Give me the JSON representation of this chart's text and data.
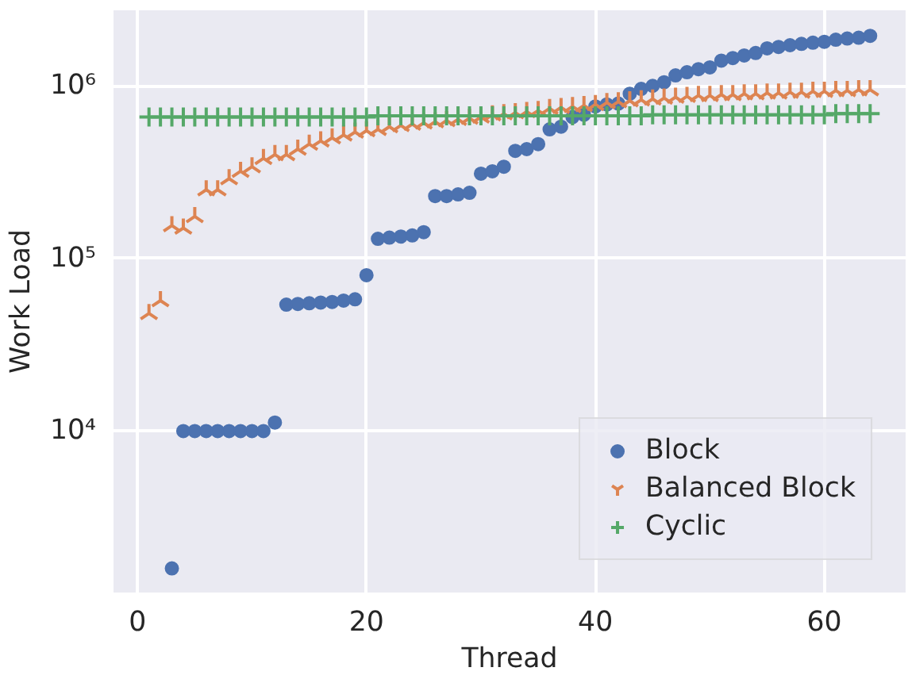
{
  "chart_data": {
    "type": "scatter",
    "xlabel": "Thread",
    "ylabel": "Work Load",
    "log": "y",
    "grid": true,
    "legend": "bottom right",
    "xlim": [
      -2.1,
      67.1
    ],
    "xticks": [
      0,
      20,
      40,
      60
    ],
    "ylim": [
      1160,
      2740000
    ],
    "yticks": [
      {
        "value": 10000,
        "label": "10⁴"
      },
      {
        "value": 100000,
        "label": "10⁵"
      },
      {
        "value": 1000000,
        "label": "10⁶"
      }
    ],
    "series": [
      {
        "name": "Block",
        "color": "#4c72b0",
        "marker": "circle",
        "x": [
          3,
          4,
          5,
          6,
          7,
          8,
          9,
          10,
          11,
          12,
          13,
          14,
          15,
          16,
          17,
          18,
          19,
          20,
          21,
          22,
          23,
          24,
          25,
          26,
          27,
          28,
          29,
          30,
          31,
          32,
          33,
          34,
          35,
          36,
          37,
          38,
          39,
          40,
          41,
          42,
          43,
          44,
          45,
          46,
          47,
          48,
          49,
          50,
          51,
          52,
          53,
          54,
          55,
          56,
          57,
          58,
          59,
          60,
          61,
          62,
          63,
          64
        ],
        "values": [
          1600,
          10000,
          10000,
          10000,
          10000,
          10000,
          10000,
          10000,
          10000,
          11200,
          54000,
          54500,
          55000,
          55500,
          56000,
          57000,
          58000,
          80000,
          130000,
          132000,
          134000,
          136000,
          142000,
          230000,
          230000,
          235000,
          240000,
          310000,
          320000,
          340000,
          420000,
          430000,
          460000,
          560000,
          580000,
          660000,
          680000,
          760000,
          780000,
          790000,
          900000,
          960000,
          1000000,
          1050000,
          1150000,
          1200000,
          1250000,
          1280000,
          1400000,
          1450000,
          1500000,
          1550000,
          1650000,
          1680000,
          1720000,
          1750000,
          1780000,
          1800000,
          1850000,
          1880000,
          1900000,
          1950000
        ]
      },
      {
        "name": "Balanced Block",
        "color": "#dd8452",
        "x": [
          1,
          2,
          3,
          4,
          5,
          6,
          7,
          8,
          9,
          10,
          11,
          12,
          13,
          14,
          15,
          16,
          17,
          18,
          19,
          20,
          21,
          22,
          23,
          24,
          25,
          26,
          27,
          28,
          29,
          30,
          31,
          32,
          33,
          34,
          35,
          36,
          37,
          38,
          39,
          40,
          41,
          42,
          43,
          44,
          45,
          46,
          47,
          48,
          49,
          50,
          51,
          52,
          53,
          54,
          55,
          56,
          57,
          58,
          59,
          60,
          61,
          62,
          63,
          64
        ],
        "values": [
          48000,
          57000,
          155000,
          150000,
          175000,
          250000,
          250000,
          290000,
          320000,
          340000,
          380000,
          400000,
          400000,
          430000,
          460000,
          480000,
          500000,
          520000,
          540000,
          550000,
          560000,
          580000,
          590000,
          600000,
          610000,
          620000,
          630000,
          640000,
          650000,
          660000,
          680000,
          690000,
          700000,
          710000,
          720000,
          740000,
          750000,
          760000,
          770000,
          780000,
          800000,
          810000,
          820000,
          830000,
          840000,
          850000,
          860000,
          870000,
          880000,
          880000,
          890000,
          890000,
          900000,
          900000,
          910000,
          910000,
          920000,
          920000,
          930000,
          930000,
          940000,
          940000,
          950000,
          950000
        ]
      },
      {
        "name": "Cyclic",
        "color": "#55a868",
        "marker": "cross",
        "x": [
          1,
          2,
          3,
          4,
          5,
          6,
          7,
          8,
          9,
          10,
          11,
          12,
          13,
          14,
          15,
          16,
          17,
          18,
          19,
          20,
          21,
          22,
          23,
          24,
          25,
          26,
          27,
          28,
          29,
          30,
          31,
          32,
          33,
          34,
          35,
          36,
          37,
          38,
          39,
          40,
          41,
          42,
          43,
          44,
          45,
          46,
          47,
          48,
          49,
          50,
          51,
          52,
          53,
          54,
          55,
          56,
          57,
          58,
          59,
          60,
          61,
          62,
          63,
          64
        ],
        "values": [
          660000,
          660000,
          660000,
          660000,
          660000,
          660000,
          660000,
          660000,
          660000,
          660000,
          660000,
          660000,
          660000,
          660000,
          660000,
          660000,
          660000,
          660000,
          660000,
          660000,
          670000,
          670000,
          670000,
          670000,
          670000,
          670000,
          670000,
          670000,
          670000,
          670000,
          670000,
          670000,
          670000,
          670000,
          670000,
          670000,
          670000,
          670000,
          670000,
          670000,
          670000,
          670000,
          670000,
          670000,
          680000,
          680000,
          680000,
          680000,
          680000,
          680000,
          680000,
          680000,
          680000,
          680000,
          680000,
          680000,
          680000,
          680000,
          680000,
          680000,
          690000,
          690000,
          690000,
          690000
        ]
      }
    ]
  }
}
